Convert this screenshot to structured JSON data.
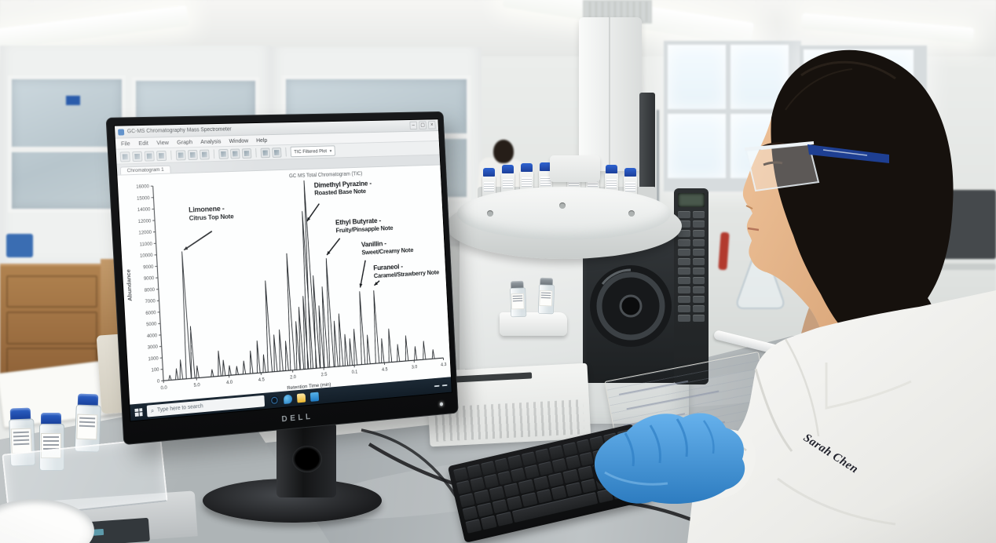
{
  "photo": {
    "monitor_brand": "DELL",
    "scientist_name_tag": "Sarah Chen"
  },
  "screen": {
    "window_title": "GC-MS Chromatography Mass Spectrometer",
    "window_controls": {
      "minimize": "–",
      "maximize": "▢",
      "close": "×"
    },
    "menu_items": [
      "File",
      "Edit",
      "View",
      "Graph",
      "Analysis",
      "Window",
      "Help"
    ],
    "toolbar_icons": [
      "new-file",
      "open-file",
      "save",
      "print",
      "cut",
      "copy",
      "paste",
      "zoom-in",
      "zoom-out",
      "peak-detect",
      "spectrum",
      "report"
    ],
    "toolbar_filter_label": "TIC Filtered Plot",
    "toolbar_filter_caret": "▾",
    "tab_label": "Chromatogram 1",
    "taskbar": {
      "search_placeholder": "Type here to search",
      "search_icon": "⌕",
      "icons": [
        "cortana-icon",
        "edge-icon",
        "file-explorer-icon",
        "store-icon"
      ]
    }
  },
  "chart_data": {
    "type": "line",
    "title": "GC MS Total Chromatogram (TIC)",
    "xlabel": "Retention Time (min)",
    "ylabel": "Abundance",
    "ylim": [
      0,
      16000
    ],
    "grid": false,
    "legend": "none",
    "y_ticks": [
      "16000",
      "15000",
      "14000",
      "12000",
      "12000",
      "11000",
      "10000",
      "9000",
      "9000",
      "8000",
      "7000",
      "6000",
      "5000",
      "4000",
      "3000",
      "1000",
      "100",
      "0"
    ],
    "x_ticks": [
      "0.0",
      "5.0",
      "4.0",
      "4.5",
      "2.0",
      "2.5",
      "0.1",
      "4.5",
      "3.0",
      "4.3"
    ],
    "peaks_x_fraction_height": [
      [
        0.022,
        400
      ],
      [
        0.045,
        900
      ],
      [
        0.06,
        1600
      ],
      [
        0.085,
        10500
      ],
      [
        0.1,
        4300
      ],
      [
        0.115,
        1000
      ],
      [
        0.165,
        600
      ],
      [
        0.19,
        2100
      ],
      [
        0.205,
        1300
      ],
      [
        0.225,
        800
      ],
      [
        0.25,
        700
      ],
      [
        0.275,
        1100
      ],
      [
        0.3,
        1900
      ],
      [
        0.325,
        2700
      ],
      [
        0.345,
        1500
      ],
      [
        0.365,
        7700
      ],
      [
        0.385,
        3100
      ],
      [
        0.405,
        3500
      ],
      [
        0.425,
        2500
      ],
      [
        0.445,
        9900
      ],
      [
        0.465,
        4100
      ],
      [
        0.478,
        5300
      ],
      [
        0.495,
        6200
      ],
      [
        0.508,
        13400
      ],
      [
        0.52,
        16000
      ],
      [
        0.535,
        7900
      ],
      [
        0.55,
        5300
      ],
      [
        0.565,
        6900
      ],
      [
        0.585,
        9300
      ],
      [
        0.602,
        3900
      ],
      [
        0.62,
        4500
      ],
      [
        0.638,
        2700
      ],
      [
        0.655,
        2300
      ],
      [
        0.672,
        3100
      ],
      [
        0.7,
        6300
      ],
      [
        0.72,
        2500
      ],
      [
        0.752,
        6300
      ],
      [
        0.772,
        2100
      ],
      [
        0.8,
        2900
      ],
      [
        0.83,
        1500
      ],
      [
        0.862,
        2200
      ],
      [
        0.895,
        1200
      ],
      [
        0.928,
        1600
      ],
      [
        0.962,
        800
      ]
    ],
    "annotations": [
      {
        "compound": "Limonene -",
        "note": "Citrus Top Note",
        "label_x": 0.115,
        "label_y": 0.11,
        "arrow": [
          0.19,
          0.245,
          0.092,
          0.335
        ]
      },
      {
        "compound": "Dimethyl Pyrazine -",
        "note": "Roasted Base Note",
        "label_x": 0.555,
        "label_y": 0.005,
        "arrow": [
          0.57,
          0.125,
          0.523,
          0.215
        ]
      },
      {
        "compound": "Ethyl Butyrate -",
        "note": "Fruity/Pinsapple Note",
        "label_x": 0.625,
        "label_y": 0.21,
        "arrow": [
          0.638,
          0.315,
          0.588,
          0.4
        ]
      },
      {
        "compound": "Vanillin -",
        "note": "Sweet/Creamy Note",
        "label_x": 0.715,
        "label_y": 0.335,
        "arrow": [
          0.727,
          0.44,
          0.703,
          0.585
        ]
      },
      {
        "compound": "Furaneol -",
        "note": "Caramel/Strawberry Note",
        "label_x": 0.755,
        "label_y": 0.465,
        "arrow": [
          0.775,
          0.555,
          0.755,
          0.578
        ]
      }
    ]
  }
}
